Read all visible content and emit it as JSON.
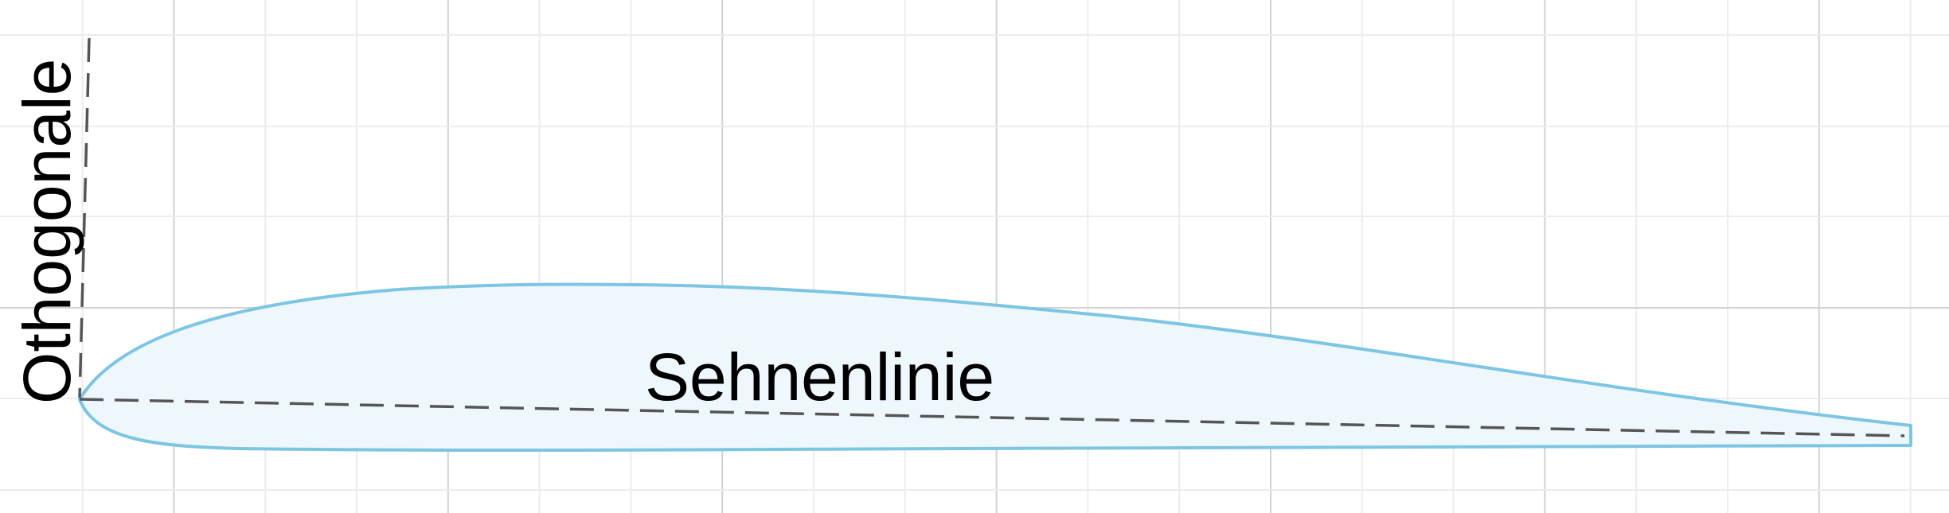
{
  "diagram": {
    "labels": {
      "chord_line": "Sehnenlinie",
      "orthogonal": "Othogonale"
    },
    "colors": {
      "background": "#ffffff",
      "airfoil_fill": "#eef7fc",
      "airfoil_stroke": "#7cc5e3",
      "dashed_line": "#555555",
      "grid_minor": "#ececec",
      "grid_major": "#d2d2d2",
      "text": "#000000"
    }
  }
}
